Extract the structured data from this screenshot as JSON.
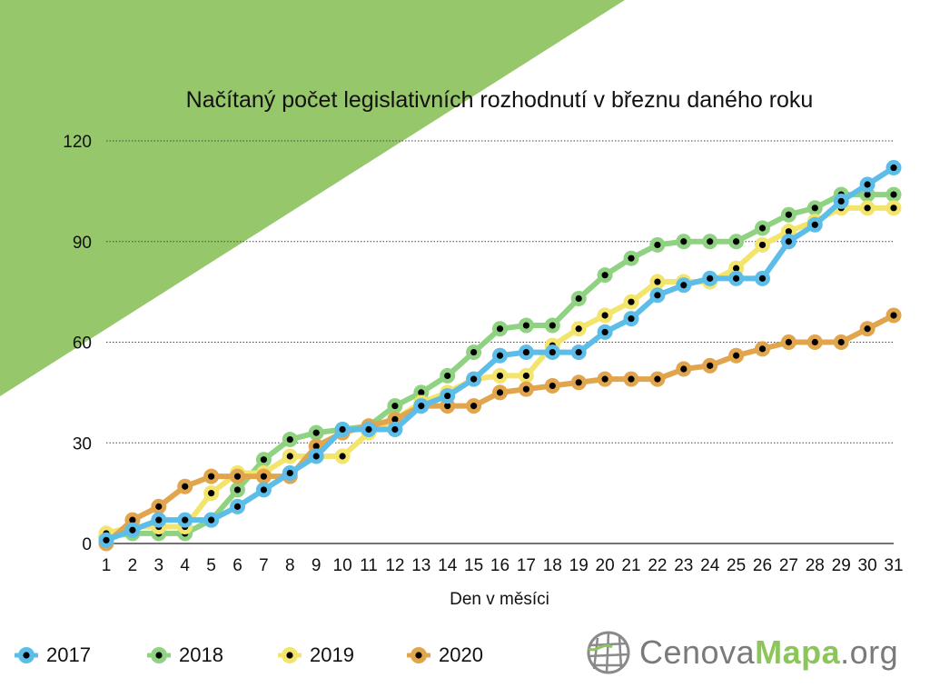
{
  "chart_data": {
    "type": "line",
    "title": "Načítaný počet legislativních rozhodnutí v březnu daného roku",
    "xlabel": "Den v měsíci",
    "ylabel": "",
    "x": [
      1,
      2,
      3,
      4,
      5,
      6,
      7,
      8,
      9,
      10,
      11,
      12,
      13,
      14,
      15,
      16,
      17,
      18,
      19,
      20,
      21,
      22,
      23,
      24,
      25,
      26,
      27,
      28,
      29,
      30,
      31
    ],
    "xlim": [
      1,
      31
    ],
    "ylim": [
      0,
      120
    ],
    "yticks": [
      0,
      30,
      60,
      90,
      120
    ],
    "grid": "horizontal dotted",
    "legend_position": "bottom-left",
    "series": [
      {
        "name": "2018",
        "color": "#8fd281",
        "values": [
          2,
          3,
          3,
          3,
          7,
          16,
          25,
          31,
          33,
          34,
          35,
          41,
          45,
          50,
          57,
          64,
          65,
          65,
          73,
          80,
          85,
          89,
          90,
          90,
          90,
          94,
          98,
          100,
          104,
          104,
          104
        ]
      },
      {
        "name": "2019",
        "color": "#f3e46c",
        "values": [
          3,
          5,
          5,
          5,
          15,
          21,
          21,
          26,
          26,
          26,
          33,
          37,
          42,
          45,
          49,
          50,
          50,
          59,
          64,
          68,
          72,
          78,
          78,
          78,
          82,
          89,
          93,
          96,
          100,
          100,
          100
        ]
      },
      {
        "name": "2020",
        "color": "#e1a54d",
        "values": [
          0,
          7,
          11,
          17,
          20,
          20,
          20,
          20,
          29,
          33,
          35,
          37,
          41,
          41,
          41,
          45,
          46,
          47,
          48,
          49,
          49,
          49,
          52,
          53,
          56,
          58,
          60,
          60,
          60,
          64,
          68
        ]
      },
      {
        "name": "2017",
        "color": "#5dbde9",
        "values": [
          1,
          4,
          7,
          7,
          7,
          11,
          16,
          21,
          26,
          34,
          34,
          34,
          41,
          44,
          49,
          56,
          57,
          57,
          57,
          63,
          67,
          74,
          77,
          79,
          79,
          79,
          90,
          95,
          102,
          107,
          112
        ]
      }
    ],
    "legend_order": [
      "2017",
      "2018",
      "2019",
      "2020"
    ]
  },
  "background": {
    "triangle_color": "#96c76a"
  },
  "logo": {
    "text_plain": "Cenova",
    "text_accent": "Mapa",
    "text_suffix": ".org",
    "icon": "globe-grid-icon"
  }
}
